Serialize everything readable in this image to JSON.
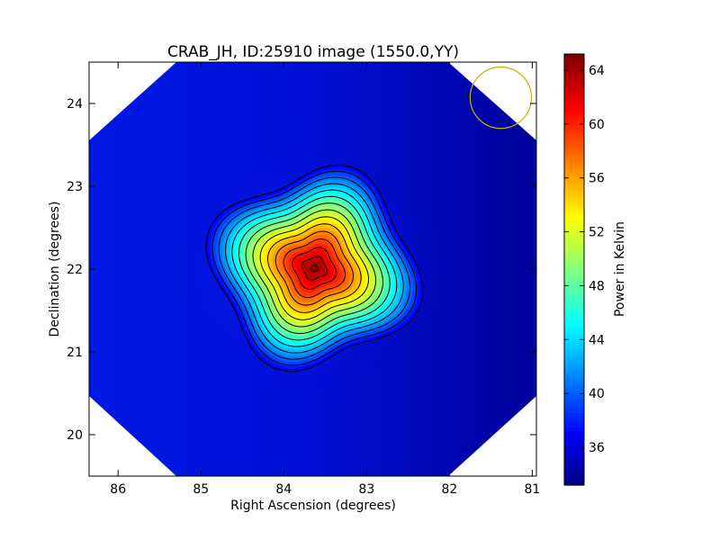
{
  "chart_data": {
    "type": "heatmap",
    "title": "CRAB_JH, ID:25910 image (1550.0,YY)",
    "xlabel": "Right Ascension (degrees)",
    "ylabel": "Declination (degrees)",
    "xlim": [
      86.35,
      80.95
    ],
    "ylim": [
      19.5,
      24.5
    ],
    "x_ticks": [
      86,
      85,
      84,
      83,
      82,
      81
    ],
    "y_ticks": [
      20,
      21,
      22,
      23,
      24
    ],
    "colorbar": {
      "label": "Power in Kelvin",
      "range": [
        33.2,
        65.2
      ],
      "ticks": [
        36,
        40,
        44,
        48,
        52,
        56,
        60,
        64
      ],
      "colormap": "jet"
    },
    "source_peak": {
      "ra": 83.63,
      "dec": 22.01,
      "value": 65
    },
    "background_level": 34.5,
    "contour_levels": [
      37,
      39,
      41,
      43,
      45,
      47,
      49,
      51,
      53,
      55,
      57,
      59,
      61,
      63,
      64.6
    ],
    "beam_circle": {
      "ra": 81.38,
      "dec": 24.07,
      "radius_deg": 0.37,
      "color": "#c8b400"
    },
    "colors": {
      "contour": "#000000",
      "axes": "#000000"
    }
  }
}
